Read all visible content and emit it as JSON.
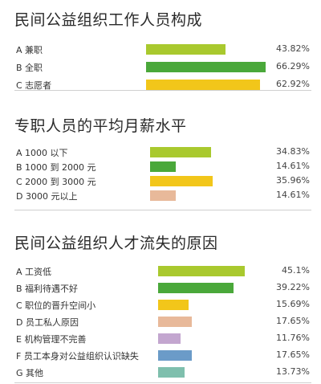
{
  "chart_data": [
    {
      "type": "bar",
      "title": "民间公益组织工作人员构成",
      "unit": "%",
      "xlim": [
        0,
        70
      ],
      "categories": [
        "A 兼职",
        "B 全职",
        "C 志愿者"
      ],
      "values": [
        43.82,
        66.29,
        62.92
      ],
      "value_labels": [
        "43.82%",
        "66.29%",
        "62.92%"
      ],
      "colors": [
        "#a9c92e",
        "#4aa83a",
        "#f2c61a"
      ]
    },
    {
      "type": "bar",
      "title": "专职人员的平均月薪水平",
      "unit": "%",
      "xlim": [
        0,
        70
      ],
      "categories": [
        "A 1000 以下",
        "B 1000 到 2000 元",
        "C 2000 到 3000 元",
        "D 3000 元以上"
      ],
      "values": [
        34.83,
        14.61,
        35.96,
        14.61
      ],
      "value_labels": [
        "34.83%",
        "14.61%",
        "35.96%",
        "14.61%"
      ],
      "colors": [
        "#a9c92e",
        "#4aa83a",
        "#f2c61a",
        "#e8b99a"
      ]
    },
    {
      "type": "bar",
      "title": "民间公益组织人才流失的原因",
      "unit": "%",
      "xlim": [
        0,
        70
      ],
      "categories": [
        "A 工资低",
        "B 福利待遇不好",
        "C 职位的晋升空间小",
        "D 员工私人原因",
        "E 机构管理不完善",
        "F 员工本身对公益组织认识缺失",
        "G 其他"
      ],
      "values": [
        45.1,
        39.22,
        15.69,
        17.65,
        11.76,
        17.65,
        13.73
      ],
      "value_labels": [
        "45.1%",
        "39.22%",
        "15.69%",
        "17.65%",
        "11.76%",
        "17.65%",
        "13.73%"
      ],
      "colors": [
        "#a9c92e",
        "#4aa83a",
        "#f2c61a",
        "#e8b99a",
        "#c3a6cf",
        "#6b9bc8",
        "#7fbfad"
      ]
    }
  ]
}
